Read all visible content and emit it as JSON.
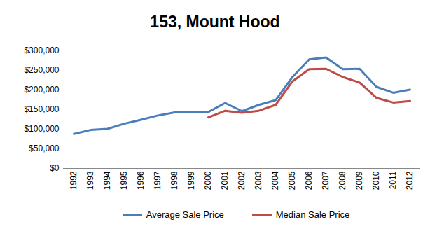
{
  "chart_data": {
    "type": "line",
    "title": "153, Mount Hood",
    "categories": [
      "1992",
      "1993",
      "1994",
      "1995",
      "1996",
      "1997",
      "1998",
      "1999",
      "2000",
      "2001",
      "2002",
      "2003",
      "2004",
      "2005",
      "2006",
      "2007",
      "2008",
      "2009",
      "2010",
      "2011",
      "2012"
    ],
    "series": [
      {
        "name": "Average Sale Price",
        "color": "#4a7ebb",
        "values": [
          88000,
          98000,
          101000,
          114000,
          124000,
          135000,
          143000,
          144000,
          144000,
          167000,
          146000,
          162000,
          174000,
          233000,
          278000,
          283000,
          253000,
          254000,
          208000,
          193000,
          201000
        ]
      },
      {
        "name": "Median Sale Price",
        "color": "#be4b48",
        "values": [
          null,
          null,
          null,
          null,
          null,
          null,
          null,
          null,
          130000,
          147000,
          142000,
          147000,
          162000,
          222000,
          253000,
          254000,
          233000,
          219000,
          180000,
          168000,
          172000
        ]
      }
    ],
    "ylim": [
      0,
      300000
    ],
    "yticks": [
      {
        "value": 0,
        "label": "$0"
      },
      {
        "value": 50000,
        "label": "$50,000"
      },
      {
        "value": 100000,
        "label": "$100,000"
      },
      {
        "value": 150000,
        "label": "$150,000"
      },
      {
        "value": 200000,
        "label": "$200,000"
      },
      {
        "value": 250000,
        "label": "$250,000"
      },
      {
        "value": 300000,
        "label": "$300,000"
      }
    ],
    "grid": false,
    "legend": "bottom"
  }
}
